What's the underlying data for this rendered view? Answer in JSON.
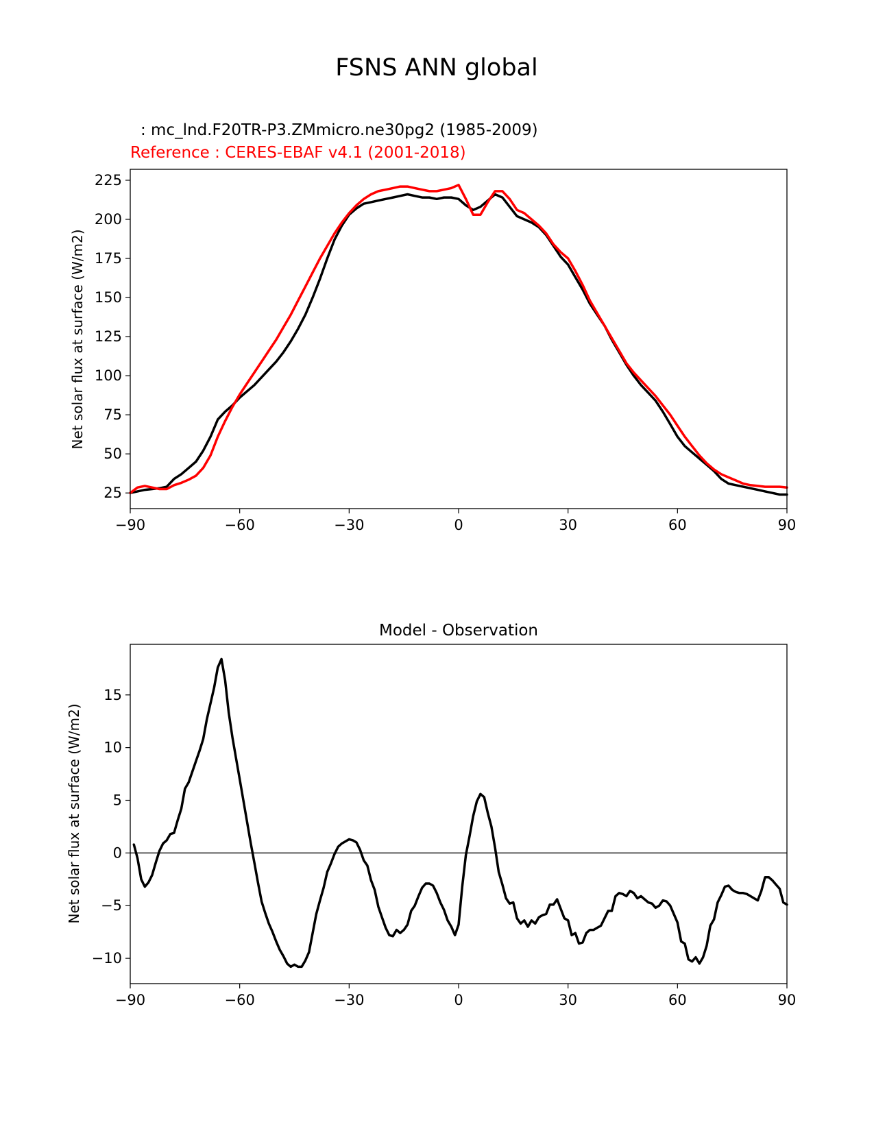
{
  "figure_title": "FSNS ANN global",
  "chart_data": [
    {
      "type": "line",
      "title_test": ": mc_lnd.F20TR-P3.ZMmicro.ne30pg2 (1985-2009)",
      "title_reference": "Reference : CERES-EBAF v4.1 (2001-2018)",
      "xlabel": "",
      "ylabel": "Net solar flux at surface (W/m2)",
      "xlim": [
        -90,
        90
      ],
      "ylim": [
        15,
        232
      ],
      "xticks": [
        -90,
        -60,
        -30,
        0,
        30,
        60,
        90
      ],
      "xtick_labels": [
        "−90",
        "−60",
        "−30",
        "0",
        "30",
        "60",
        "90"
      ],
      "yticks": [
        25,
        50,
        75,
        100,
        125,
        150,
        175,
        200,
        225
      ],
      "ytick_labels": [
        "25",
        "50",
        "75",
        "100",
        "125",
        "150",
        "175",
        "200",
        "225"
      ],
      "grid": false,
      "x": [
        -90,
        -88,
        -86,
        -84,
        -82,
        -80,
        -78,
        -76,
        -74,
        -72,
        -70,
        -68,
        -66,
        -64,
        -62,
        -60,
        -58,
        -56,
        -54,
        -52,
        -50,
        -48,
        -46,
        -44,
        -42,
        -40,
        -38,
        -36,
        -34,
        -32,
        -30,
        -28,
        -26,
        -24,
        -22,
        -20,
        -18,
        -16,
        -14,
        -12,
        -10,
        -8,
        -6,
        -4,
        -2,
        0,
        2,
        4,
        6,
        8,
        10,
        12,
        14,
        16,
        18,
        20,
        22,
        24,
        26,
        28,
        30,
        32,
        34,
        36,
        38,
        40,
        42,
        44,
        46,
        48,
        50,
        52,
        54,
        56,
        58,
        60,
        62,
        64,
        66,
        68,
        70,
        72,
        74,
        76,
        78,
        80,
        82,
        84,
        86,
        88,
        90
      ],
      "series": [
        {
          "name": "test",
          "color": "#000000",
          "values": [
            25,
            26,
            27,
            27.5,
            28,
            29,
            34,
            37,
            41,
            45,
            52,
            61,
            72,
            77,
            81,
            86,
            90,
            94,
            99,
            104,
            109,
            115,
            122,
            130,
            139,
            150,
            162,
            175,
            187,
            196,
            203,
            207,
            210,
            211,
            212,
            213,
            214,
            215,
            216,
            215,
            214,
            214,
            213,
            214,
            214,
            213,
            209,
            206,
            208,
            212,
            216,
            214,
            208,
            202,
            200,
            198,
            195,
            190,
            183,
            176,
            171,
            163,
            155,
            146,
            139,
            132,
            123,
            115,
            107,
            100,
            94,
            89,
            84,
            77,
            69,
            61,
            55,
            51,
            47,
            43,
            39,
            34,
            31,
            30,
            29,
            28,
            27,
            26,
            25,
            24,
            24
          ],
          "color_name": "black"
        },
        {
          "name": "reference",
          "color": "#ff0000",
          "values": [
            25,
            28.5,
            29.5,
            28.5,
            27.5,
            27.5,
            30,
            31.5,
            33.5,
            36,
            41,
            49,
            61,
            71,
            80,
            88,
            95,
            102,
            109,
            116,
            123,
            131,
            139,
            148,
            157,
            166,
            175,
            183,
            191,
            198,
            204,
            209,
            213,
            216,
            218,
            219,
            220,
            221,
            221,
            220,
            219,
            218,
            218,
            219,
            220,
            222,
            213,
            203,
            203,
            211,
            218,
            218,
            213,
            206,
            204,
            200,
            196,
            191,
            184,
            179,
            175,
            167,
            158,
            148,
            140,
            132,
            124,
            116,
            108,
            102,
            97,
            92,
            87,
            81,
            75,
            68,
            61,
            55,
            49,
            44,
            40,
            37,
            35,
            33,
            31,
            30,
            29.5,
            29,
            29,
            29,
            28.5
          ]
        }
      ]
    },
    {
      "type": "line",
      "title": "Model - Observation",
      "xlabel": "",
      "ylabel": "Net solar flux at surface (W/m2)",
      "xlim": [
        -90,
        90
      ],
      "ylim": [
        -12.4,
        19.8
      ],
      "xticks": [
        -90,
        -60,
        -30,
        0,
        30,
        60,
        90
      ],
      "xtick_labels": [
        "−90",
        "−60",
        "−30",
        "0",
        "30",
        "60",
        "90"
      ],
      "yticks": [
        -10,
        -5,
        0,
        5,
        10,
        15
      ],
      "ytick_labels": [
        "−10",
        "−5",
        "0",
        "5",
        "10",
        "15"
      ],
      "grid": false,
      "zero_line_color": "#808080",
      "x": [
        -89,
        -88,
        -87,
        -86,
        -85,
        -84,
        -83,
        -82,
        -81,
        -80,
        -79,
        -78,
        -77,
        -76,
        -75,
        -74,
        -73,
        -72,
        -71,
        -70,
        -69,
        -68,
        -67,
        -66,
        -65,
        -64,
        -63,
        -62,
        -61,
        -60,
        -59,
        -58,
        -57,
        -56,
        -55,
        -54,
        -53,
        -52,
        -51,
        -50,
        -49,
        -48,
        -47,
        -46,
        -45,
        -44,
        -43,
        -42,
        -41,
        -40,
        -39,
        -38,
        -37,
        -36,
        -35,
        -34,
        -33,
        -32,
        -31,
        -30,
        -29,
        -28,
        -27,
        -26,
        -25,
        -24,
        -23,
        -22,
        -21,
        -20,
        -19,
        -18,
        -17,
        -16,
        -15,
        -14,
        -13,
        -12,
        -11,
        -10,
        -9,
        -8,
        -7,
        -6,
        -5,
        -4,
        -3,
        -2,
        -1,
        0,
        1,
        2,
        3,
        4,
        5,
        6,
        7,
        8,
        9,
        10,
        11,
        12,
        13,
        14,
        15,
        16,
        17,
        18,
        19,
        20,
        21,
        22,
        23,
        24,
        25,
        26,
        27,
        28,
        29,
        30,
        31,
        32,
        33,
        34,
        35,
        36,
        37,
        38,
        39,
        40,
        41,
        42,
        43,
        44,
        45,
        46,
        47,
        48,
        49,
        50,
        51,
        52,
        53,
        54,
        55,
        56,
        57,
        58,
        59,
        60,
        61,
        62,
        63,
        64,
        65,
        66,
        67,
        68,
        69,
        70,
        71,
        72,
        73,
        74,
        75,
        76,
        77,
        78,
        79,
        80,
        81,
        82,
        83,
        84,
        85,
        86,
        87,
        88,
        89,
        90
      ],
      "series": [
        {
          "name": "difference",
          "color": "#000000",
          "values": [
            0.8,
            -0.5,
            -2.5,
            -3.2,
            -2.8,
            -2.1,
            -0.9,
            0.2,
            0.9,
            1.2,
            1.8,
            1.9,
            3.1,
            4.2,
            6.1,
            6.7,
            7.7,
            8.7,
            9.7,
            10.8,
            12.7,
            14.2,
            15.7,
            17.6,
            18.4,
            16.4,
            13.3,
            11.0,
            9.0,
            7.0,
            5.0,
            3.0,
            1.0,
            -0.9,
            -2.8,
            -4.6,
            -5.7,
            -6.7,
            -7.5,
            -8.4,
            -9.2,
            -9.8,
            -10.5,
            -10.8,
            -10.6,
            -10.8,
            -10.8,
            -10.2,
            -9.4,
            -7.6,
            -5.8,
            -4.5,
            -3.3,
            -1.8,
            -1.0,
            -0.1,
            0.6,
            0.9,
            1.1,
            1.3,
            1.2,
            1.0,
            0.3,
            -0.7,
            -1.2,
            -2.6,
            -3.5,
            -5.1,
            -6.1,
            -7.1,
            -7.8,
            -7.9,
            -7.3,
            -7.6,
            -7.3,
            -6.8,
            -5.5,
            -5.0,
            -4.1,
            -3.3,
            -2.9,
            -2.9,
            -3.1,
            -3.8,
            -4.7,
            -5.4,
            -6.4,
            -7.0,
            -7.8,
            -6.8,
            -3.2,
            -0.2,
            1.6,
            3.5,
            4.9,
            5.6,
            5.3,
            3.8,
            2.5,
            0.5,
            -1.8,
            -3.0,
            -4.3,
            -4.8,
            -4.7,
            -6.2,
            -6.7,
            -6.4,
            -7.0,
            -6.4,
            -6.7,
            -6.1,
            -5.9,
            -5.8,
            -4.9,
            -4.9,
            -4.4,
            -5.3,
            -6.2,
            -6.4,
            -7.8,
            -7.6,
            -8.6,
            -8.5,
            -7.6,
            -7.3,
            -7.3,
            -7.1,
            -6.9,
            -6.2,
            -5.5,
            -5.5,
            -4.1,
            -3.8,
            -3.9,
            -4.1,
            -3.6,
            -3.8,
            -4.3,
            -4.1,
            -4.4,
            -4.7,
            -4.8,
            -5.2,
            -5.0,
            -4.5,
            -4.6,
            -5.0,
            -5.8,
            -6.6,
            -8.4,
            -8.6,
            -10.1,
            -10.3,
            -9.9,
            -10.5,
            -9.9,
            -8.8,
            -6.9,
            -6.3,
            -4.7,
            -4.0,
            -3.2,
            -3.1,
            -3.5,
            -3.7,
            -3.8,
            -3.8,
            -3.9,
            -4.1,
            -4.3,
            -4.5,
            -3.6,
            -2.3,
            -2.3,
            -2.6,
            -3.0,
            -3.4,
            -4.7,
            -4.9
          ]
        }
      ]
    }
  ]
}
